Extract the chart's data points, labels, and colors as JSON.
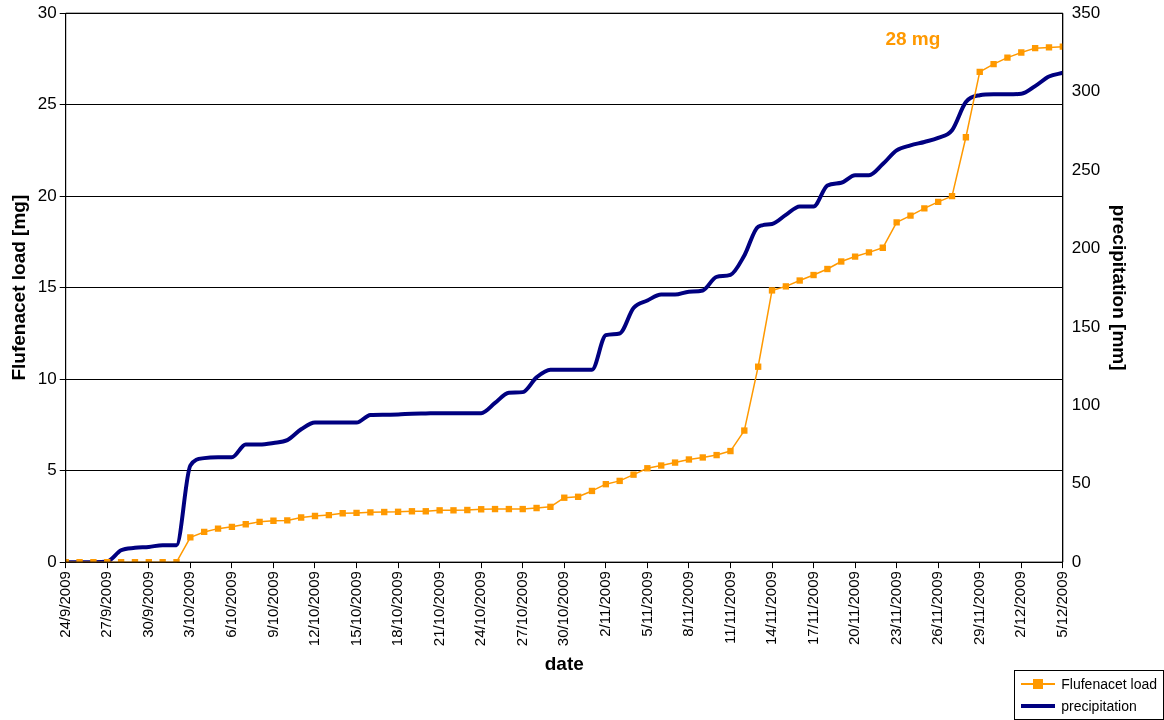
{
  "chart_data": {
    "type": "line",
    "xlabel": "date",
    "ylabel": "Flufenacet load [mg]",
    "y2label": "precipitation [mm]",
    "x": [
      "2009-09-24",
      "2009-09-25",
      "2009-09-26",
      "2009-09-27",
      "2009-09-28",
      "2009-09-29",
      "2009-09-30",
      "2009-10-01",
      "2009-10-02",
      "2009-10-03",
      "2009-10-04",
      "2009-10-05",
      "2009-10-06",
      "2009-10-07",
      "2009-10-08",
      "2009-10-09",
      "2009-10-10",
      "2009-10-11",
      "2009-10-12",
      "2009-10-13",
      "2009-10-14",
      "2009-10-15",
      "2009-10-16",
      "2009-10-17",
      "2009-10-18",
      "2009-10-19",
      "2009-10-20",
      "2009-10-21",
      "2009-10-22",
      "2009-10-23",
      "2009-10-24",
      "2009-10-25",
      "2009-10-26",
      "2009-10-27",
      "2009-10-28",
      "2009-10-29",
      "2009-10-30",
      "2009-10-31",
      "2009-11-01",
      "2009-11-02",
      "2009-11-03",
      "2009-11-04",
      "2009-11-05",
      "2009-11-06",
      "2009-11-07",
      "2009-11-08",
      "2009-11-09",
      "2009-11-10",
      "2009-11-11",
      "2009-11-12",
      "2009-11-13",
      "2009-11-14",
      "2009-11-15",
      "2009-11-16",
      "2009-11-17",
      "2009-11-18",
      "2009-11-19",
      "2009-11-20",
      "2009-11-21",
      "2009-11-22",
      "2009-11-23",
      "2009-11-24",
      "2009-11-25",
      "2009-11-26",
      "2009-11-27",
      "2009-11-28",
      "2009-11-29",
      "2009-11-30",
      "2009-12-01",
      "2009-12-02",
      "2009-12-03",
      "2009-12-04",
      "2009-12-05"
    ],
    "series": [
      {
        "name": "Flufenacet load",
        "axis": "y",
        "color": "#ff9900",
        "marker": "square",
        "values": [
          0,
          0,
          0,
          0,
          0,
          0,
          0,
          0,
          0,
          1.35,
          1.65,
          1.83,
          1.93,
          2.07,
          2.2,
          2.26,
          2.28,
          2.44,
          2.52,
          2.57,
          2.67,
          2.69,
          2.72,
          2.74,
          2.75,
          2.78,
          2.78,
          2.83,
          2.83,
          2.85,
          2.89,
          2.9,
          2.9,
          2.9,
          2.96,
          3.02,
          3.52,
          3.57,
          3.89,
          4.26,
          4.44,
          4.78,
          5.13,
          5.28,
          5.44,
          5.61,
          5.72,
          5.85,
          6.07,
          7.19,
          10.68,
          14.85,
          15.07,
          15.39,
          15.69,
          16.02,
          16.43,
          16.7,
          16.93,
          17.18,
          18.57,
          18.94,
          19.33,
          19.69,
          20.0,
          23.22,
          26.79,
          27.22,
          27.57,
          27.85,
          28.09,
          28.13,
          28.17
        ]
      },
      {
        "name": "precipitation",
        "axis": "y2",
        "color": "#000080",
        "marker": "none",
        "values": [
          0,
          0,
          0,
          0.4,
          7.6,
          9.1,
          9.7,
          10.8,
          10.8,
          61.6,
          66.3,
          66.8,
          66.8,
          75,
          75,
          76,
          77.8,
          84.7,
          89,
          89,
          89,
          89,
          93.8,
          94,
          94.2,
          94.6,
          94.8,
          95,
          95,
          95,
          95,
          101.5,
          108,
          108.4,
          117.8,
          122.7,
          122.7,
          122.7,
          122.7,
          144.7,
          145.8,
          162,
          166.8,
          170.6,
          170.6,
          172.4,
          173.2,
          181.9,
          183.2,
          195.5,
          213.9,
          215.6,
          221.4,
          226.8,
          226.8,
          240.2,
          241.9,
          246.7,
          246.7,
          253.8,
          262.5,
          265.7,
          267.9,
          270.5,
          275.4,
          293.4,
          297.7,
          298.3,
          298.3,
          298.6,
          303.5,
          309.6,
          312
        ]
      }
    ],
    "xlim": [
      "2009-09-24",
      "2009-12-05"
    ],
    "xticks": [
      {
        "value": "2009-09-24",
        "label": "24/9/2009"
      },
      {
        "value": "2009-09-27",
        "label": "27/9/2009"
      },
      {
        "value": "2009-09-30",
        "label": "30/9/2009"
      },
      {
        "value": "2009-10-03",
        "label": "3/10/2009"
      },
      {
        "value": "2009-10-06",
        "label": "6/10/2009"
      },
      {
        "value": "2009-10-09",
        "label": "9/10/2009"
      },
      {
        "value": "2009-10-12",
        "label": "12/10/2009"
      },
      {
        "value": "2009-10-15",
        "label": "15/10/2009"
      },
      {
        "value": "2009-10-18",
        "label": "18/10/2009"
      },
      {
        "value": "2009-10-21",
        "label": "21/10/2009"
      },
      {
        "value": "2009-10-24",
        "label": "24/10/2009"
      },
      {
        "value": "2009-10-27",
        "label": "27/10/2009"
      },
      {
        "value": "2009-10-30",
        "label": "30/10/2009"
      },
      {
        "value": "2009-11-02",
        "label": "2/11/2009"
      },
      {
        "value": "2009-11-05",
        "label": "5/11/2009"
      },
      {
        "value": "2009-11-08",
        "label": "8/11/2009"
      },
      {
        "value": "2009-11-11",
        "label": "11/11/2009"
      },
      {
        "value": "2009-11-14",
        "label": "14/11/2009"
      },
      {
        "value": "2009-11-17",
        "label": "17/11/2009"
      },
      {
        "value": "2009-11-20",
        "label": "20/11/2009"
      },
      {
        "value": "2009-11-23",
        "label": "23/11/2009"
      },
      {
        "value": "2009-11-26",
        "label": "26/11/2009"
      },
      {
        "value": "2009-11-29",
        "label": "29/11/2009"
      },
      {
        "value": "2009-12-02",
        "label": "2/12/2009"
      },
      {
        "value": "2009-12-05",
        "label": "5/12/2009"
      }
    ],
    "ylim": [
      0,
      30
    ],
    "yticks": [
      0,
      5,
      10,
      15,
      20,
      25,
      30
    ],
    "y2lim": [
      0,
      350
    ],
    "y2ticks": [
      0,
      50,
      100,
      150,
      200,
      250,
      300,
      350
    ],
    "grid": "y",
    "legend": "bottom right",
    "annotations": [
      "28 mg"
    ]
  }
}
